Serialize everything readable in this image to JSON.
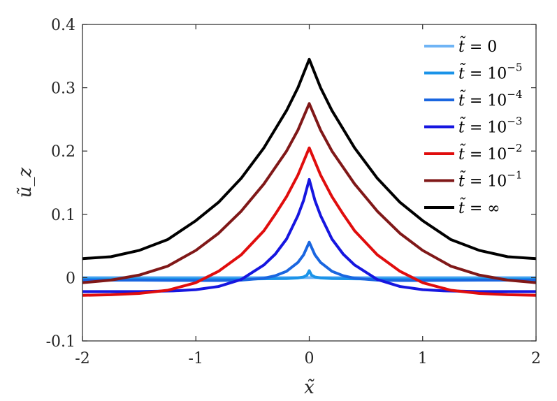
{
  "chart_data": {
    "type": "line",
    "xlabel": "x̃",
    "ylabel": "ũ_z",
    "xlim": [
      -2,
      2
    ],
    "ylim": [
      -0.1,
      0.4
    ],
    "x_ticks": [
      -2,
      -1,
      0,
      1,
      2
    ],
    "x_tick_labels": [
      "-2",
      "-1",
      "0",
      "1",
      "2"
    ],
    "y_ticks": [
      -0.1,
      0,
      0.1,
      0.2,
      0.3,
      0.4
    ],
    "y_tick_labels": [
      "-0.1",
      "0",
      "0.1",
      "0.2",
      "0.3",
      "0.4"
    ],
    "grid": false,
    "legend_position": "top-right",
    "series": [
      {
        "name": "t̃ = 0",
        "legend": {
          "lhs": "t̃",
          "op": "=",
          "base": "0",
          "exp": ""
        },
        "color": "#6fb4f5",
        "x": [
          -2,
          -1.5,
          -1,
          -0.5,
          0,
          0.5,
          1,
          1.5,
          2
        ],
        "y": [
          0,
          0,
          0,
          0,
          0,
          0,
          0,
          0,
          0
        ]
      },
      {
        "name": "t̃ = 10^−5",
        "legend": {
          "lhs": "t̃",
          "op": "=",
          "base": "10",
          "exp": "−5"
        },
        "color": "#1a93e8",
        "x": [
          -2,
          -1,
          -0.5,
          -0.2,
          -0.1,
          -0.05,
          -0.02,
          0,
          0.02,
          0.05,
          0.1,
          0.2,
          0.5,
          1,
          2
        ],
        "y": [
          -0.002,
          -0.002,
          -0.002,
          -0.0015,
          -0.0005,
          0.001,
          0.004,
          0.011,
          0.004,
          0.001,
          -0.0005,
          -0.0015,
          -0.002,
          -0.002,
          -0.002
        ]
      },
      {
        "name": "t̃ = 10^−4",
        "legend": {
          "lhs": "t̃",
          "op": "=",
          "base": "10",
          "exp": "−4"
        },
        "color": "#1a66e0",
        "x": [
          -2,
          -1.5,
          -1,
          -0.8,
          -0.6,
          -0.4,
          -0.3,
          -0.2,
          -0.1,
          -0.05,
          0,
          0.05,
          0.1,
          0.2,
          0.3,
          0.4,
          0.6,
          0.8,
          1,
          1.5,
          2
        ],
        "y": [
          -0.004,
          -0.004,
          -0.0045,
          -0.0045,
          -0.004,
          -0.001,
          0.003,
          0.01,
          0.024,
          0.036,
          0.056,
          0.036,
          0.024,
          0.01,
          0.003,
          -0.001,
          -0.004,
          -0.0045,
          -0.0045,
          -0.004,
          -0.004
        ]
      },
      {
        "name": "t̃ = 10^−3",
        "legend": {
          "lhs": "t̃",
          "op": "=",
          "base": "10",
          "exp": "−3"
        },
        "color": "#1616e0",
        "x": [
          -2,
          -1.5,
          -1.2,
          -1,
          -0.8,
          -0.6,
          -0.4,
          -0.3,
          -0.2,
          -0.1,
          -0.05,
          0,
          0.05,
          0.1,
          0.2,
          0.3,
          0.4,
          0.6,
          0.8,
          1,
          1.2,
          1.5,
          2
        ],
        "y": [
          -0.022,
          -0.022,
          -0.021,
          -0.019,
          -0.014,
          -0.003,
          0.02,
          0.037,
          0.061,
          0.098,
          0.122,
          0.155,
          0.122,
          0.098,
          0.061,
          0.037,
          0.02,
          -0.003,
          -0.014,
          -0.019,
          -0.021,
          -0.022,
          -0.022
        ]
      },
      {
        "name": "t̃ = 10^−2",
        "legend": {
          "lhs": "t̃",
          "op": "=",
          "base": "10",
          "exp": "−2"
        },
        "color": "#e00d0d",
        "x": [
          -2,
          -1.75,
          -1.5,
          -1.25,
          -1,
          -0.8,
          -0.6,
          -0.4,
          -0.3,
          -0.2,
          -0.1,
          0,
          0.1,
          0.2,
          0.3,
          0.4,
          0.6,
          0.8,
          1,
          1.25,
          1.5,
          1.75,
          2
        ],
        "y": [
          -0.028,
          -0.027,
          -0.025,
          -0.02,
          -0.008,
          0.01,
          0.036,
          0.074,
          0.1,
          0.128,
          0.162,
          0.205,
          0.162,
          0.128,
          0.1,
          0.074,
          0.036,
          0.01,
          -0.008,
          -0.02,
          -0.025,
          -0.027,
          -0.028
        ]
      },
      {
        "name": "t̃ = 10^−1",
        "legend": {
          "lhs": "t̃",
          "op": "=",
          "base": "10",
          "exp": "−1"
        },
        "color": "#801818",
        "x": [
          -2,
          -1.75,
          -1.5,
          -1.25,
          -1,
          -0.8,
          -0.6,
          -0.4,
          -0.2,
          -0.1,
          0,
          0.1,
          0.2,
          0.4,
          0.6,
          0.8,
          1,
          1.25,
          1.5,
          1.75,
          2
        ],
        "y": [
          -0.008,
          -0.004,
          0.004,
          0.018,
          0.043,
          0.07,
          0.105,
          0.148,
          0.2,
          0.233,
          0.275,
          0.233,
          0.2,
          0.148,
          0.105,
          0.07,
          0.043,
          0.018,
          0.004,
          -0.004,
          -0.008
        ]
      },
      {
        "name": "t̃ = ∞",
        "legend": {
          "lhs": "t̃",
          "op": "=",
          "base": "∞",
          "exp": ""
        },
        "color": "#000000",
        "x": [
          -2,
          -1.75,
          -1.5,
          -1.25,
          -1,
          -0.8,
          -0.6,
          -0.4,
          -0.2,
          -0.1,
          0,
          0.1,
          0.2,
          0.4,
          0.6,
          0.8,
          1,
          1.25,
          1.5,
          1.75,
          2
        ],
        "y": [
          0.03,
          0.033,
          0.043,
          0.06,
          0.09,
          0.119,
          0.157,
          0.205,
          0.264,
          0.3,
          0.345,
          0.3,
          0.264,
          0.205,
          0.157,
          0.119,
          0.09,
          0.06,
          0.043,
          0.033,
          0.03
        ]
      }
    ]
  }
}
